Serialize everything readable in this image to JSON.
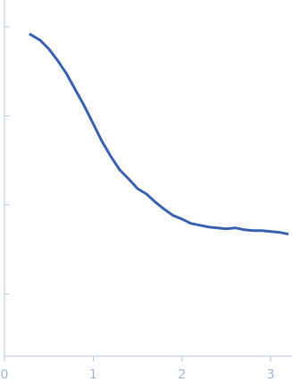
{
  "chart_data": {
    "type": "line",
    "x": [
      0.28,
      0.4,
      0.5,
      0.6,
      0.7,
      0.8,
      0.9,
      1.0,
      1.1,
      1.2,
      1.3,
      1.4,
      1.5,
      1.6,
      1.7,
      1.8,
      1.9,
      2.0,
      2.1,
      2.2,
      2.3,
      2.4,
      2.5,
      2.6,
      2.7,
      2.8,
      2.9,
      3.0,
      3.1,
      3.2
    ],
    "series": [
      {
        "color": "#3a62b0",
        "values": [
          3.92,
          3.85,
          3.75,
          3.62,
          3.47,
          3.29,
          3.11,
          2.91,
          2.71,
          2.54,
          2.39,
          2.29,
          2.18,
          2.12,
          2.03,
          1.95,
          1.88,
          1.84,
          1.79,
          1.77,
          1.75,
          1.74,
          1.73,
          1.74,
          1.72,
          1.71,
          1.71,
          1.7,
          1.69,
          1.67
        ]
      }
    ],
    "xlim": [
      0,
      3.24
    ],
    "xticks": [
      0,
      1,
      2,
      3
    ],
    "ylim": [
      0.3,
      4.3
    ],
    "yticks": [
      1,
      2,
      3,
      4
    ]
  }
}
